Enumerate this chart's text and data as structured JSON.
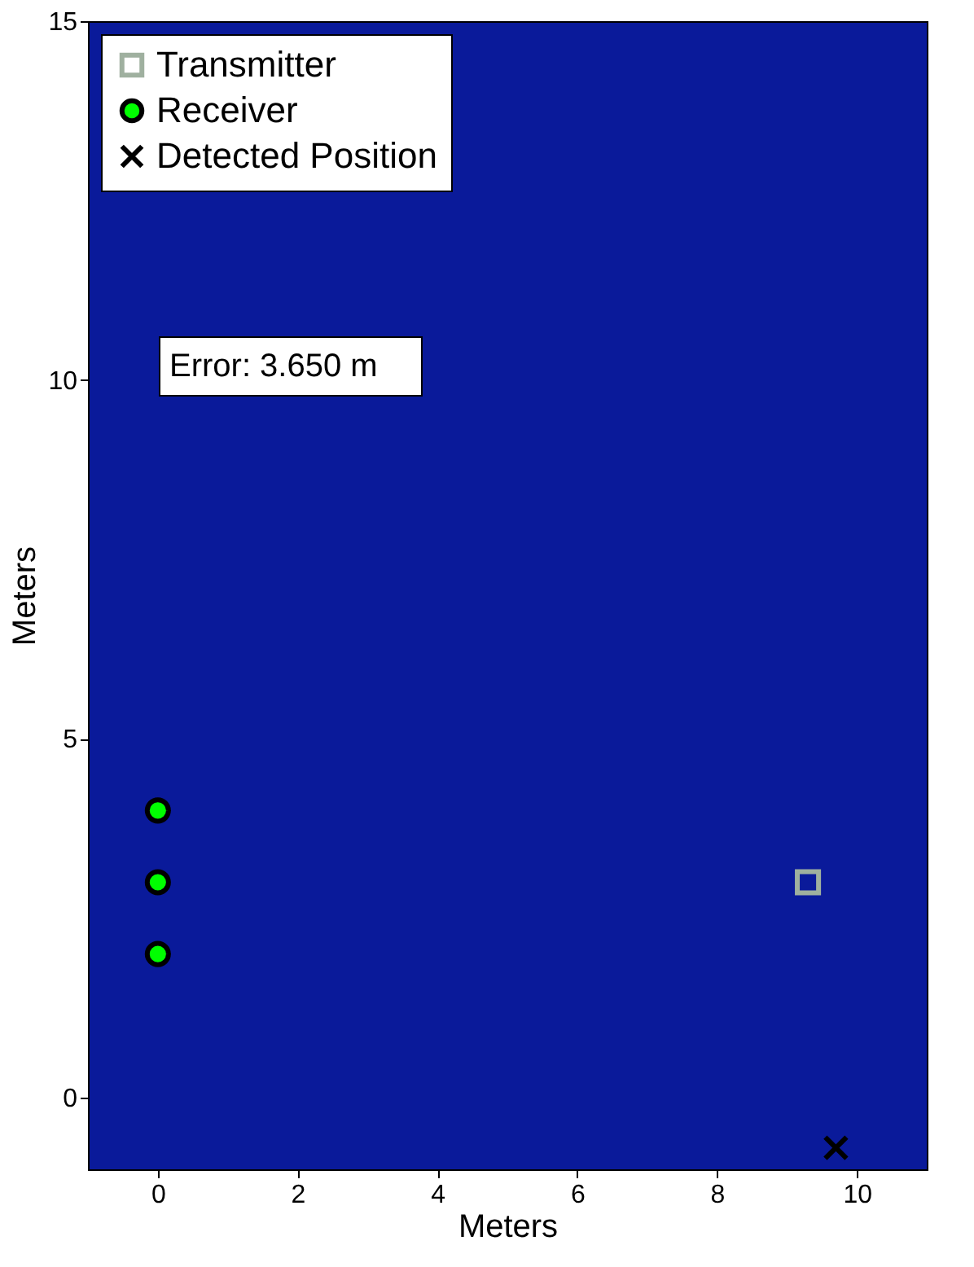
{
  "chart_data": {
    "type": "scatter",
    "xlabel": "Meters",
    "ylabel": "Meters",
    "xlim": [
      -1,
      11
    ],
    "ylim": [
      -1,
      15
    ],
    "xticks": [
      0,
      2,
      4,
      6,
      8,
      10
    ],
    "yticks": [
      0,
      5,
      10,
      15
    ],
    "grid": false,
    "legend": "top left",
    "annotations": [
      "Error: 3.650 m"
    ],
    "series": [
      {
        "name": "Transmitter",
        "color": "#9fb09f",
        "marker": "square",
        "x": [
          9.3
        ],
        "values": [
          3.0
        ]
      },
      {
        "name": "Receiver",
        "color": "#00ff00",
        "marker": "circle",
        "x": [
          0,
          0,
          0
        ],
        "values": [
          2,
          3,
          4
        ]
      },
      {
        "name": "Detected Position",
        "color": "#000000",
        "marker": "cross",
        "x": [
          9.7
        ],
        "values": [
          -0.7
        ]
      }
    ]
  }
}
